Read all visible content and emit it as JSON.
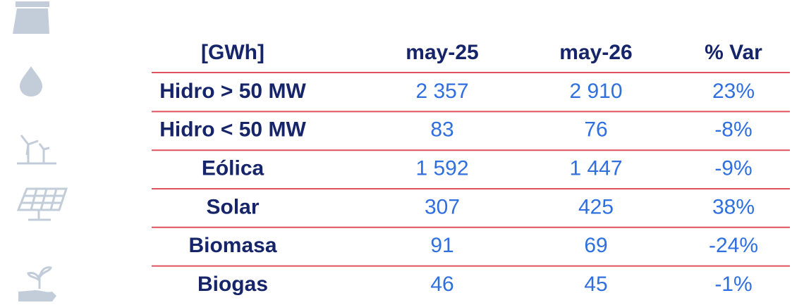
{
  "table": {
    "header": [
      "[GWh]",
      "may-25",
      "may-26",
      "% Var"
    ],
    "rows": [
      [
        "Hidro > 50 MW",
        "2 357",
        "2 910",
        "23%"
      ],
      [
        "Hidro < 50 MW",
        "83",
        "76",
        "-8%"
      ],
      [
        "Eólica",
        "1 592",
        "1 447",
        "-9%"
      ],
      [
        "Solar",
        "307",
        "425",
        "38%"
      ],
      [
        "Biomasa",
        "91",
        "69",
        "-24%"
      ],
      [
        "Biogas",
        "46",
        "45",
        "-1%"
      ]
    ]
  }
}
